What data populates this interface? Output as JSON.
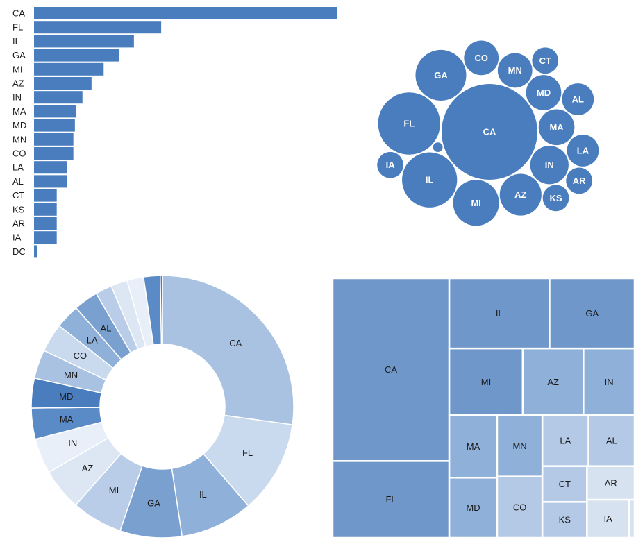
{
  "colors": {
    "bar": "#4a7dbd",
    "bubble": "#4a7dbd",
    "bubble_label": "#ffffff",
    "donut_palette": [
      "#a9c2e2",
      "#c9d9ee",
      "#8fb0d9",
      "#7aa0d0",
      "#b9cde8",
      "#dde7f4",
      "#e8eff8",
      "#5b8bc6",
      "#4a7dbd"
    ],
    "treemap_palette": [
      "#6f97c9",
      "#8fb0d9",
      "#b3c9e5",
      "#d7e2f1"
    ],
    "text": "#1a1a1a"
  },
  "chart_data": [
    {
      "type": "bar",
      "orientation": "horizontal",
      "categories": [
        "CA",
        "FL",
        "IL",
        "GA",
        "MI",
        "AZ",
        "IN",
        "MA",
        "MD",
        "MN",
        "CO",
        "LA",
        "AL",
        "CT",
        "KS",
        "AR",
        "IA",
        "DC"
      ],
      "values": [
        100,
        42,
        33,
        28,
        23,
        19,
        16,
        14,
        13.5,
        13,
        13,
        11,
        11,
        7.5,
        7.5,
        7.5,
        7.5,
        1
      ],
      "xlim": [
        0,
        100
      ]
    },
    {
      "type": "bubble",
      "labels": [
        "CA",
        "FL",
        "IL",
        "GA",
        "MI",
        "AZ",
        "IN",
        "MA",
        "MD",
        "MN",
        "CO",
        "LA",
        "AL",
        "CT",
        "KS",
        "AR",
        "IA",
        "DC"
      ],
      "values": [
        100,
        42,
        33,
        28,
        23,
        19,
        16,
        14,
        13.5,
        13,
        13,
        11,
        11,
        7.5,
        7.5,
        7.5,
        7.5,
        1
      ],
      "labeled": [
        "CA",
        "FL",
        "IL",
        "GA",
        "MI",
        "AZ",
        "IN",
        "MA",
        "MD",
        "MN",
        "CO",
        "LA",
        "AL",
        "CT",
        "KS",
        "AR",
        "IA"
      ]
    },
    {
      "type": "pie",
      "variant": "donut",
      "labels": [
        "CA",
        "FL",
        "IL",
        "GA",
        "MI",
        "AZ",
        "IN",
        "MA",
        "MD",
        "MN",
        "CO",
        "LA",
        "AL",
        "CT",
        "KS",
        "AR",
        "IA",
        "DC"
      ],
      "values": [
        100,
        42,
        33,
        28,
        23,
        19,
        16,
        14,
        13.5,
        13,
        13,
        11,
        11,
        7.5,
        7.5,
        7.5,
        7.5,
        1
      ],
      "labeled": [
        "CA",
        "FL",
        "IL",
        "GA",
        "MI",
        "AZ",
        "IN",
        "MA",
        "MD",
        "MN",
        "CO",
        "LA",
        "AL"
      ]
    },
    {
      "type": "treemap",
      "labels": [
        "CA",
        "FL",
        "IL",
        "GA",
        "MI",
        "AZ",
        "IN",
        "MA",
        "MD",
        "MN",
        "CO",
        "LA",
        "AL",
        "CT",
        "KS",
        "AR",
        "IA",
        "DC"
      ],
      "values": [
        100,
        42,
        33,
        28,
        23,
        19,
        16,
        14,
        13.5,
        13,
        13,
        11,
        11,
        7.5,
        7.5,
        7.5,
        7.5,
        1
      ],
      "labeled": [
        "CA",
        "FL",
        "IL",
        "GA",
        "MI",
        "AZ",
        "IN",
        "MA",
        "MD",
        "MN",
        "CO",
        "LA",
        "AL",
        "CT",
        "KS",
        "AR",
        "IA"
      ]
    }
  ]
}
